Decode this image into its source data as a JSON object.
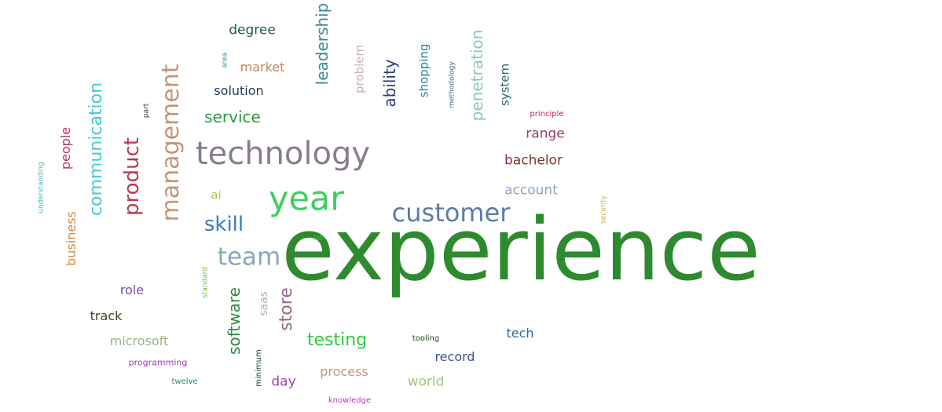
{
  "word_cloud": {
    "words": [
      {
        "text": "experience",
        "color": "#2e8a2e",
        "orientation": "horizontal"
      },
      {
        "text": "technology",
        "color": "#8a7c8e",
        "orientation": "horizontal"
      },
      {
        "text": "year",
        "color": "#3fcf5c",
        "orientation": "horizontal"
      },
      {
        "text": "customer",
        "color": "#5a7ca8",
        "orientation": "horizontal"
      },
      {
        "text": "management",
        "color": "#c4957a",
        "orientation": "vertical"
      },
      {
        "text": "product",
        "color": "#b83a52",
        "orientation": "vertical"
      },
      {
        "text": "communication",
        "color": "#46c9cf",
        "orientation": "vertical"
      },
      {
        "text": "team",
        "color": "#8aa6b3",
        "orientation": "horizontal"
      },
      {
        "text": "skill",
        "color": "#3a7cc6",
        "orientation": "horizontal"
      },
      {
        "text": "leadership",
        "color": "#3a8a96",
        "orientation": "vertical"
      },
      {
        "text": "penetration",
        "color": "#8ac7b8",
        "orientation": "vertical"
      },
      {
        "text": "store",
        "color": "#956a8a",
        "orientation": "vertical"
      },
      {
        "text": "software",
        "color": "#2f8a3e",
        "orientation": "vertical"
      },
      {
        "text": "ability",
        "color": "#243f6e",
        "orientation": "vertical"
      },
      {
        "text": "testing",
        "color": "#2fc940",
        "orientation": "horizontal"
      },
      {
        "text": "service",
        "color": "#2a9a3a",
        "orientation": "horizontal"
      },
      {
        "text": "people",
        "color": "#b8336a",
        "orientation": "vertical"
      },
      {
        "text": "business",
        "color": "#d58a3f",
        "orientation": "vertical"
      },
      {
        "text": "degree",
        "color": "#1f5f3a",
        "orientation": "horizontal"
      },
      {
        "text": "market",
        "color": "#c4845a",
        "orientation": "horizontal"
      },
      {
        "text": "solution",
        "color": "#1f3a5a",
        "orientation": "horizontal"
      },
      {
        "text": "shopping",
        "color": "#2a8a8a",
        "orientation": "vertical"
      },
      {
        "text": "system",
        "color": "#2a6a6a",
        "orientation": "vertical"
      },
      {
        "text": "problem",
        "color": "#c9b3c4",
        "orientation": "vertical"
      },
      {
        "text": "range",
        "color": "#9a3a6a",
        "orientation": "horizontal"
      },
      {
        "text": "bachelor",
        "color": "#7a3a2a",
        "orientation": "horizontal"
      },
      {
        "text": "account",
        "color": "#8aa6c4",
        "orientation": "horizontal"
      },
      {
        "text": "role",
        "color": "#7a4aa6",
        "orientation": "horizontal"
      },
      {
        "text": "track",
        "color": "#3a4a1a",
        "orientation": "horizontal"
      },
      {
        "text": "microsoft",
        "color": "#9ab38a",
        "orientation": "horizontal"
      },
      {
        "text": "tech",
        "color": "#2a6a9a",
        "orientation": "horizontal"
      },
      {
        "text": "record",
        "color": "#3a4f96",
        "orientation": "horizontal"
      },
      {
        "text": "process",
        "color": "#c4957a",
        "orientation": "horizontal"
      },
      {
        "text": "day",
        "color": "#a63ab8",
        "orientation": "horizontal"
      },
      {
        "text": "world",
        "color": "#9ac97a",
        "orientation": "horizontal"
      },
      {
        "text": "saas",
        "color": "#b3b3b3",
        "orientation": "vertical"
      },
      {
        "text": "ai",
        "color": "#a6c44a",
        "orientation": "horizontal"
      },
      {
        "text": "programming",
        "color": "#9a3ab8",
        "orientation": "horizontal"
      },
      {
        "text": "twelve",
        "color": "#2a8a6a",
        "orientation": "horizontal"
      },
      {
        "text": "knowledge",
        "color": "#b83ab8",
        "orientation": "horizontal"
      },
      {
        "text": "tooling",
        "color": "#1a4a1a",
        "orientation": "horizontal"
      },
      {
        "text": "minimum",
        "color": "#1a3a1a",
        "orientation": "vertical"
      },
      {
        "text": "standard",
        "color": "#7ab34a",
        "orientation": "vertical"
      },
      {
        "text": "lab",
        "color": "#4ab84a",
        "orientation": "horizontal"
      },
      {
        "text": "security",
        "color": "#c4a64a",
        "orientation": "vertical"
      },
      {
        "text": "principle",
        "color": "#b3294a",
        "orientation": "horizontal"
      },
      {
        "text": "methodology",
        "color": "#3a6a8a",
        "orientation": "vertical"
      },
      {
        "text": "area",
        "color": "#3a8aa6",
        "orientation": "vertical"
      },
      {
        "text": "part",
        "color": "#3a2a3a",
        "orientation": "vertical"
      },
      {
        "text": "understanding",
        "color": "#4ab3b3",
        "orientation": "vertical"
      }
    ]
  }
}
